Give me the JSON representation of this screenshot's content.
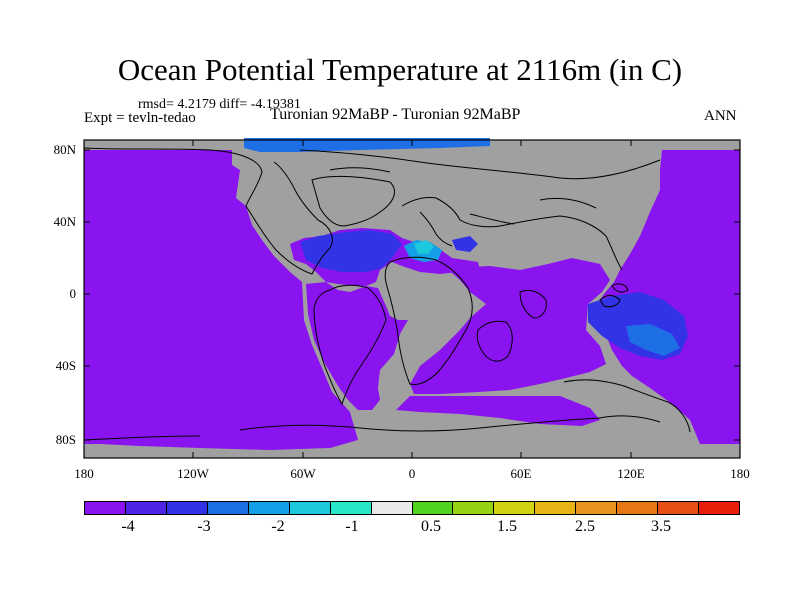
{
  "title": "Ocean Potential Temperature at 2116m (in C)",
  "stats": "rmsd= 4.2179 diff= -4.19381",
  "expt": "Expt = tevln-tedao",
  "period": "Turonian  92MaBP - Turonian  92MaBP",
  "season": "ANN",
  "map": {
    "lat_labels": [
      "80N",
      "40N",
      "0",
      "40S",
      "80S"
    ],
    "lon_labels": [
      "180",
      "120W",
      "60W",
      "0",
      "60E",
      "120E",
      "180"
    ],
    "land_color": "#a0a0a0",
    "ocean_color": "#8a14f0"
  },
  "colorbar": {
    "colors": [
      "#8a14f0",
      "#5024e6",
      "#3232e6",
      "#1e6ee6",
      "#14a0e6",
      "#1ec8dc",
      "#28e6c8",
      "#eaeaea",
      "#50d21e",
      "#96d214",
      "#d2d214",
      "#e6b414",
      "#e6961e",
      "#e67814",
      "#e65014",
      "#e61e0a"
    ],
    "labels": [
      "-4",
      "-3",
      "-2",
      "-1",
      "0.5",
      "1.5",
      "2.5",
      "3.5"
    ]
  }
}
